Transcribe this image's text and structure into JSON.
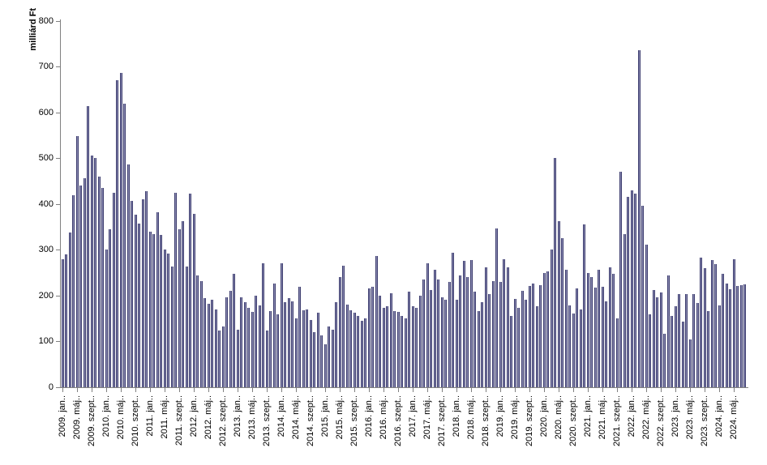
{
  "figure": {
    "background": "#ffffff",
    "axis_color": "#808080",
    "text_color": "#000000",
    "bar_color": "#3c3c6e",
    "bar_highlight": "#8e8eb5"
  },
  "y_axis": {
    "title": "milliárd Ft",
    "tick_labels": [
      "0",
      "100",
      "200",
      "300",
      "400",
      "500",
      "600",
      "700",
      "800"
    ],
    "min": 0,
    "max": 800,
    "step": 100
  },
  "x_axis": {
    "tick_labels": [
      "2009. jan..",
      "2009. máj..",
      "2009. szept..",
      "2010. jan..",
      "2010. máj..",
      "2010. szept..",
      "2011. jan..",
      "2011. máj..",
      "2011. szept..",
      "2012. jan..",
      "2012. máj..",
      "2012. szept..",
      "2013. jan..",
      "2013. máj..",
      "2013. szept..",
      "2014. jan..",
      "2014. máj..",
      "2014. szept..",
      "2015. jan..",
      "2015. máj..",
      "2015. szept..",
      "2016. jan..",
      "2016. máj..",
      "2016. szept..",
      "2017. jan..",
      "2017. máj..",
      "2017. szept..",
      "2018. jan..",
      "2018. máj..",
      "2018. szept..",
      "2019. jan..",
      "2019. máj..",
      "2019. szept..",
      "2020. jan..",
      "2020. máj..",
      "2020. szept..",
      "2021. jan..",
      "2021. máj..",
      "2021. szept..",
      "2022. jan..",
      "2022. máj..",
      "2022. szept..",
      "2023. jan..",
      "2023. máj..",
      "2023. szept..",
      "2024. jan..",
      "2024. máj.."
    ],
    "label_every_n_months": 4
  },
  "chart_data": {
    "type": "bar",
    "title": "",
    "xlabel": "",
    "ylabel": "milliárd Ft",
    "ylim": [
      0,
      800
    ],
    "grid": false,
    "legend": "none",
    "frequency": "monthly",
    "start_month": "2009-01",
    "end_month": "2024-08",
    "values": [
      280,
      290,
      337,
      419,
      548,
      440,
      456,
      614,
      506,
      500,
      460,
      435,
      300,
      345,
      425,
      670,
      686,
      618,
      487,
      406,
      376,
      357,
      410,
      428,
      340,
      335,
      382,
      332,
      300,
      291,
      264,
      424,
      344,
      362,
      264,
      422,
      379,
      244,
      232,
      194,
      182,
      191,
      170,
      123,
      132,
      197,
      211,
      247,
      126,
      196,
      185,
      173,
      165,
      200,
      179,
      270,
      123,
      166,
      226,
      160,
      270,
      185,
      194,
      188,
      150,
      220,
      168,
      170,
      147,
      120,
      163,
      113,
      94,
      133,
      126,
      186,
      241,
      266,
      180,
      168,
      163,
      155,
      145,
      150,
      215,
      220,
      287,
      200,
      173,
      176,
      205,
      167,
      164,
      155,
      150,
      209,
      176,
      174,
      200,
      235,
      270,
      213,
      256,
      235,
      196,
      191,
      229,
      294,
      191,
      244,
      275,
      241,
      278,
      209,
      167,
      186,
      262,
      203,
      232,
      347,
      229,
      280,
      262,
      156,
      192,
      173,
      211,
      191,
      221,
      226,
      176,
      223,
      249,
      253,
      300,
      500,
      363,
      326,
      256,
      179,
      161,
      216,
      170,
      356,
      250,
      241,
      217,
      256,
      219,
      188,
      262,
      247,
      150,
      470,
      335,
      415,
      429,
      423,
      735,
      396,
      312,
      160,
      213,
      197,
      206,
      117,
      244,
      156,
      176,
      203,
      144,
      203,
      105,
      204,
      184,
      283,
      260,
      167,
      278,
      269,
      179,
      247,
      226,
      214,
      280,
      221,
      223,
      224
    ]
  }
}
